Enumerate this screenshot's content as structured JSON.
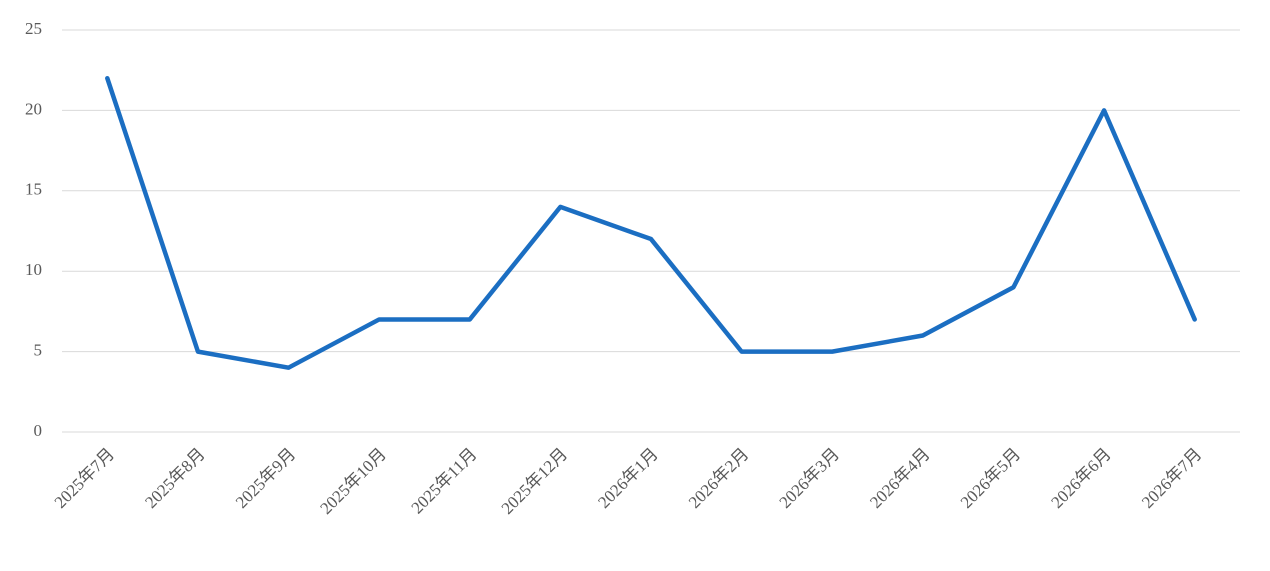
{
  "chart_data": {
    "type": "line",
    "categories": [
      "2025年7月",
      "2025年8月",
      "2025年9月",
      "2025年10月",
      "2025年11月",
      "2025年12月",
      "2026年1月",
      "2026年2月",
      "2026年3月",
      "2026年4月",
      "2026年5月",
      "2026年6月",
      "2026年7月"
    ],
    "values": [
      22,
      5,
      4,
      7,
      7,
      14,
      12,
      5,
      5,
      6,
      9,
      20,
      7
    ],
    "color": "#1b6ec2",
    "ylim": [
      0,
      25
    ],
    "yticks": [
      0,
      5,
      10,
      15,
      20,
      25
    ],
    "grid": true
  }
}
